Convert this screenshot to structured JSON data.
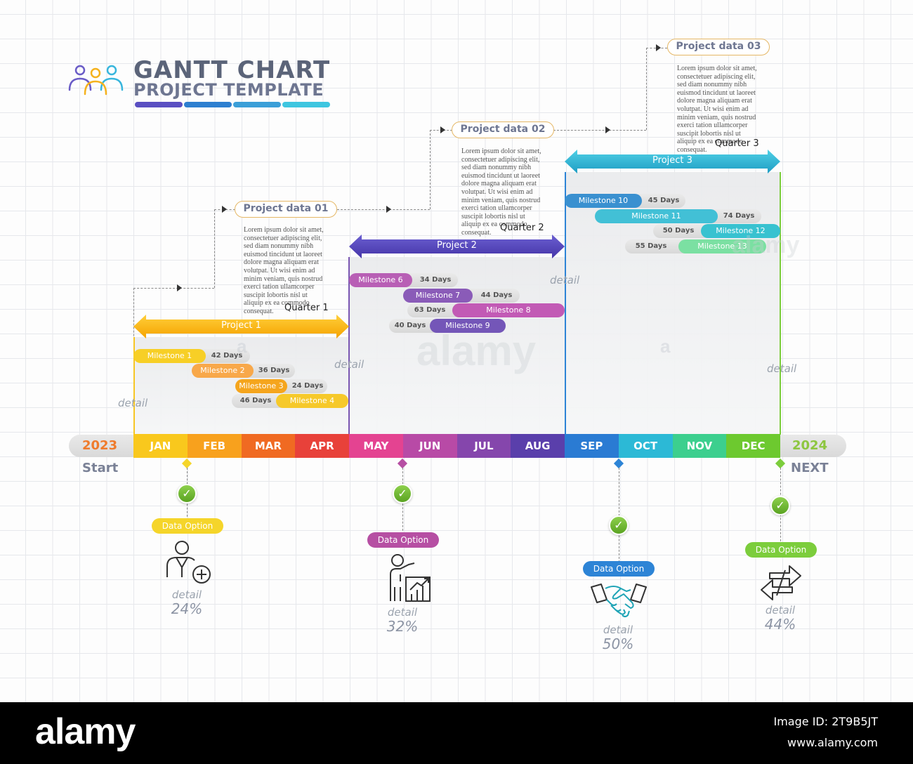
{
  "header": {
    "title": "GANTT CHART",
    "subtitle": "PROJECT TEMPLATE",
    "bar_colors": [
      "#5a4fc2",
      "#2d7fd0",
      "#3b9fd8",
      "#3ec6e0"
    ]
  },
  "project_data": [
    {
      "title": "Project data 01",
      "text": "Lorem ipsum dolor sit amet,\nconsectetuer adipiscing elit,\nsed diam nonummy nibh\neuismod tincidunt ut laoreet\ndolore magna aliquam erat\nvolutpat. Ut wisi enim ad\nminim veniam, quis nostrud\nexerci tation ullamcorper\nsuscipit lobortis nisl ut\naliquip ex ea commodo\nconsequat."
    },
    {
      "title": "Project data 02",
      "text": "Lorem ipsum dolor sit amet,\nconsectetuer adipiscing elit,\nsed diam nonummy nibh\neuismod tincidunt ut laoreet\ndolore magna aliquam erat\nvolutpat. Ut wisi enim ad\nminim veniam, quis nostrud\nexerci tation ullamcorper\nsuscipit lobortis nisl ut\naliquip ex ea commodo\nconsequat."
    },
    {
      "title": "Project data 03",
      "text": "Lorem ipsum dolor sit amet,\nconsectetuer adipiscing elit,\nsed diam nonummy nibh\neuismod tincidunt ut laoreet\ndolore magna aliquam erat\nvolutpat. Ut wisi enim ad\nminim veniam, quis nostrud\nexerci tation ullamcorper\nsuscipit lobortis nisl ut\naliquip ex ea commodo\nconsequat."
    }
  ],
  "quarters": [
    "Quarter 1",
    "Quarter 2",
    "Quarter 3"
  ],
  "projects": [
    {
      "label": "Project 1",
      "color_top": "#ffcf3a",
      "color_bottom": "#f5a300"
    },
    {
      "label": "Project 2",
      "color_top": "#6b5fd1",
      "color_bottom": "#4535a8"
    },
    {
      "label": "Project 3",
      "color_top": "#4fd0e6",
      "color_bottom": "#1f9dc4"
    }
  ],
  "milestones": [
    {
      "label": "Milestone 1",
      "days": "42 Days",
      "color": "#f7cf26"
    },
    {
      "label": "Milestone 2",
      "days": "36 Days",
      "color": "#f8a84a"
    },
    {
      "label": "Milestone 3",
      "days": "24 Days",
      "color": "#f5a51d"
    },
    {
      "label": "Milestone 4",
      "days": "46 Days",
      "color": "#f6c92a"
    },
    {
      "label": "Milestone 6",
      "days": "34 Days",
      "color": "#b85fb5"
    },
    {
      "label": "Milestone 7",
      "days": "44 Days",
      "color": "#8a5bb8"
    },
    {
      "label": "Milestone 8",
      "days": "63 Days",
      "color": "#c25ab5"
    },
    {
      "label": "Milestone 9",
      "days": "40 Days",
      "color": "#7456b8"
    },
    {
      "label": "Milestone 10",
      "days": "45 Days",
      "color": "#3a90d0"
    },
    {
      "label": "Milestone 11",
      "days": "74 Days",
      "color": "#42c0d6"
    },
    {
      "label": "Milestone 12",
      "days": "50 Days",
      "color": "#38c2d0"
    },
    {
      "label": "Milestone 13",
      "days": "55 Days",
      "color": "#7be0a2"
    }
  ],
  "detail_label": "detail",
  "timeline": {
    "start_year": "2023",
    "end_year": "2024",
    "start_label": "Start",
    "end_label": "NEXT",
    "months": [
      {
        "name": "JAN",
        "color": "#f9c81d"
      },
      {
        "name": "FEB",
        "color": "#f8a11d"
      },
      {
        "name": "MAR",
        "color": "#f06a22"
      },
      {
        "name": "APR",
        "color": "#e8413a"
      },
      {
        "name": "MAY",
        "color": "#e44391"
      },
      {
        "name": "JUN",
        "color": "#b84aa6"
      },
      {
        "name": "JUL",
        "color": "#8546ac"
      },
      {
        "name": "AUG",
        "color": "#5a3fab"
      },
      {
        "name": "SEP",
        "color": "#2a7bd3"
      },
      {
        "name": "OCT",
        "color": "#2cb9d6"
      },
      {
        "name": "NOV",
        "color": "#3ccf8e"
      },
      {
        "name": "DEC",
        "color": "#6dc92f"
      }
    ],
    "start_year_color": "#ef7b2c",
    "end_year_color": "#8dc63f"
  },
  "data_options": [
    {
      "label": "Data Option",
      "detail": "detail",
      "percent": "24%",
      "color": "#f5d52a",
      "icon": "add-user-icon"
    },
    {
      "label": "Data Option",
      "detail": "detail",
      "percent": "32%",
      "color": "#b64fa3",
      "icon": "presentation-growth-icon"
    },
    {
      "label": "Data Option",
      "detail": "detail",
      "percent": "50%",
      "color": "#2d84d6",
      "icon": "handshake-icon"
    },
    {
      "label": "Data Option",
      "detail": "detail",
      "percent": "44%",
      "color": "#7ccd3c",
      "icon": "two-way-arrows-icon"
    }
  ],
  "watermark": {
    "text": "alamy",
    "small": "a"
  },
  "footer": {
    "logo": "alamy",
    "image_id": "Image ID: 2T9B5JT",
    "url": "www.alamy.com"
  }
}
